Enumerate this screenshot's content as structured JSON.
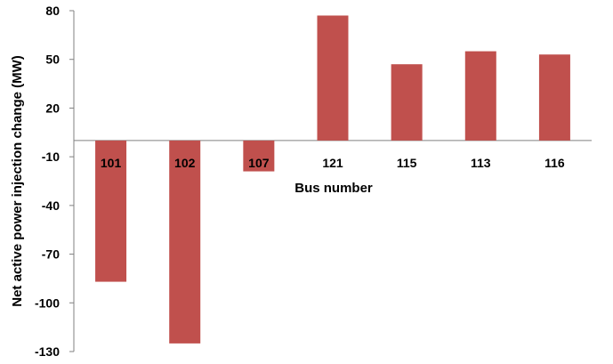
{
  "chart_data": {
    "type": "bar",
    "title": "",
    "xlabel": "Bus number",
    "ylabel": "Net active power injection change (MW)",
    "categories": [
      "101",
      "102",
      "107",
      "121",
      "115",
      "113",
      "116"
    ],
    "values": [
      -87,
      -125,
      -19,
      77,
      47,
      55,
      53
    ],
    "ylim": [
      -130,
      80
    ],
    "yticks": [
      80,
      50,
      20,
      -10,
      -40,
      -70,
      -100,
      -130
    ],
    "grid": false,
    "bar_color": "#c0504d",
    "axis_color": "#808080"
  }
}
